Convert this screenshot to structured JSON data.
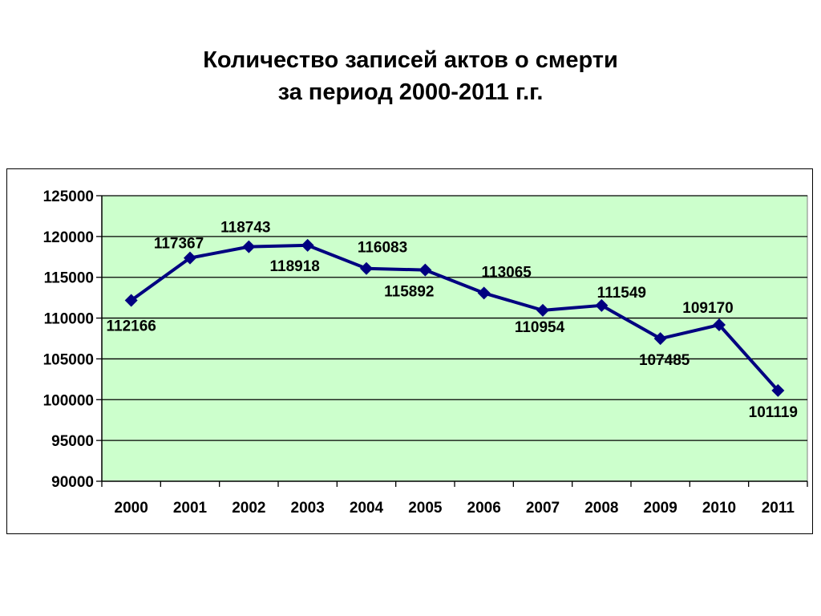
{
  "title_line1": "Количество записей актов о смерти",
  "title_line2": "за период 2000-2011 г.г.",
  "chart_data": {
    "type": "line",
    "categories": [
      "2000",
      "2001",
      "2002",
      "2003",
      "2004",
      "2005",
      "2006",
      "2007",
      "2008",
      "2009",
      "2010",
      "2011"
    ],
    "series": [
      {
        "values": [
          112166,
          117367,
          118743,
          118918,
          116083,
          115892,
          113065,
          110954,
          111549,
          107485,
          109170,
          101119
        ]
      }
    ],
    "data_labels": [
      "112166",
      "117367",
      "118743",
      "118918",
      "116083",
      "115892",
      "113065",
      "110954",
      "111549",
      "107485",
      "109170",
      "101119"
    ],
    "ylim": [
      90000,
      125000
    ],
    "yticks": [
      "90000",
      "95000",
      "100000",
      "105000",
      "110000",
      "115000",
      "120000",
      "125000"
    ],
    "grid": true,
    "legend": false,
    "colors": {
      "plot_bg": "#ccffcc",
      "line": "#000080",
      "marker": "#000080"
    }
  }
}
